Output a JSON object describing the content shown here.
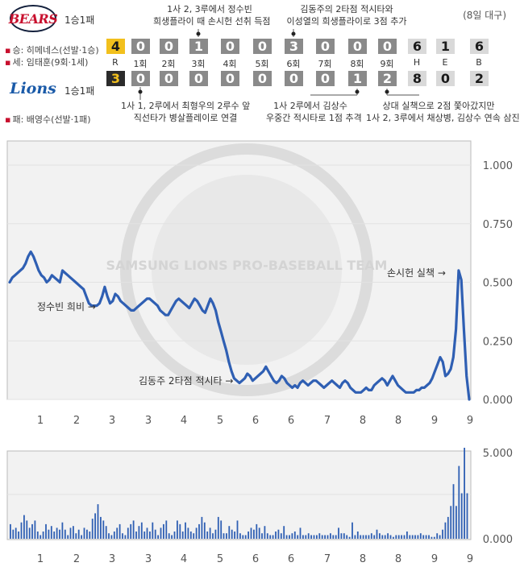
{
  "date_label": "(8일 대구)",
  "teams": {
    "away": {
      "logo_text": "BEARS",
      "record": "1승1패",
      "win_pitcher": "승: 히메네스(선발·1승)",
      "save_pitcher": "세: 임태훈(9회·1세)",
      "runs": "4",
      "innings": [
        "0",
        "0",
        "1",
        "0",
        "0",
        "3",
        "0",
        "0",
        "0"
      ],
      "hits": "6",
      "errors": "1",
      "walks": "6"
    },
    "home": {
      "logo_text": "Lions",
      "record": "1승1패",
      "loss_pitcher": "패: 배영수(선발·1패)",
      "runs": "3",
      "innings": [
        "0",
        "0",
        "0",
        "0",
        "0",
        "0",
        "0",
        "1",
        "2"
      ],
      "hits": "8",
      "errors": "0",
      "walks": "2"
    }
  },
  "scoreboard_labels": {
    "runs": "R",
    "innings": [
      "1회",
      "2회",
      "3회",
      "4회",
      "5회",
      "6회",
      "7회",
      "8회",
      "9회"
    ],
    "hits": "H",
    "errors": "E",
    "walks": "B"
  },
  "notes": {
    "third_top_1": "1사 2, 3루에서 정수빈",
    "third_top_2": "희생플라이 때 손시헌 선취 득점",
    "sixth_top_1": "김동주의 2타점 적시타와",
    "sixth_top_2": "이성열의 희생플라이로 3점 추가",
    "first_bottom_1": "1사 1, 2루에서 최형우의 2루수 앞",
    "first_bottom_2": "직선타가 병살플레이로 연결",
    "eighth_bottom_1": "1사 2루에서 김상수",
    "eighth_bottom_2": "우중간 적시타로 1점 추격",
    "ninth_bottom_1": "상대 실책으로 2점 쫓아갔지만",
    "ninth_bottom_2": "1사 2, 3루에서 채상병, 김상수 연속 삼진"
  },
  "watermark": {
    "text": "SAMSUNG LIONS PRO-BASEBALL TEAM"
  },
  "annotations": {
    "jung": "정수빈 희비 →",
    "kim": "김동주 2타점 적시타 →",
    "son": "손시헌 실책 →"
  },
  "colors": {
    "line": "#2f5fb3",
    "bar": "#2f5fb3",
    "plot_bg": "#f2f2f2",
    "panel_border": "#bbbbbb"
  },
  "chart_data": [
    {
      "type": "line",
      "title": "",
      "xlabel": "",
      "ylabel": "",
      "x_tick_labels": [
        "1",
        "2",
        "3",
        "3",
        "4",
        "5",
        "6",
        "6",
        "7",
        "8",
        "8",
        "9",
        "9"
      ],
      "y_ticks": [
        "1.000",
        "0.750",
        "0.500",
        "0.250",
        "0.000"
      ],
      "ylim": [
        0,
        1
      ],
      "grid": true,
      "series": [
        {
          "values": [
            0.5,
            0.52,
            0.53,
            0.54,
            0.55,
            0.56,
            0.58,
            0.61,
            0.63,
            0.61,
            0.58,
            0.55,
            0.53,
            0.52,
            0.5,
            0.51,
            0.53,
            0.52,
            0.51,
            0.5,
            0.55,
            0.54,
            0.53,
            0.52,
            0.51,
            0.5,
            0.49,
            0.48,
            0.47,
            0.44,
            0.41,
            0.4,
            0.4,
            0.4,
            0.41,
            0.44,
            0.48,
            0.44,
            0.41,
            0.42,
            0.45,
            0.44,
            0.42,
            0.41,
            0.4,
            0.39,
            0.38,
            0.38,
            0.39,
            0.4,
            0.41,
            0.42,
            0.43,
            0.43,
            0.42,
            0.41,
            0.4,
            0.38,
            0.37,
            0.36,
            0.36,
            0.38,
            0.4,
            0.42,
            0.43,
            0.42,
            0.41,
            0.4,
            0.39,
            0.41,
            0.43,
            0.42,
            0.4,
            0.38,
            0.37,
            0.4,
            0.43,
            0.41,
            0.38,
            0.33,
            0.29,
            0.25,
            0.21,
            0.16,
            0.12,
            0.09,
            0.08,
            0.07,
            0.08,
            0.09,
            0.11,
            0.1,
            0.08,
            0.09,
            0.1,
            0.11,
            0.12,
            0.14,
            0.12,
            0.1,
            0.08,
            0.07,
            0.08,
            0.1,
            0.09,
            0.07,
            0.06,
            0.05,
            0.06,
            0.05,
            0.07,
            0.08,
            0.07,
            0.06,
            0.07,
            0.08,
            0.08,
            0.07,
            0.06,
            0.05,
            0.06,
            0.07,
            0.08,
            0.07,
            0.06,
            0.05,
            0.07,
            0.08,
            0.07,
            0.05,
            0.04,
            0.03,
            0.03,
            0.03,
            0.04,
            0.05,
            0.04,
            0.04,
            0.06,
            0.07,
            0.08,
            0.09,
            0.08,
            0.06,
            0.08,
            0.1,
            0.08,
            0.06,
            0.05,
            0.04,
            0.03,
            0.03,
            0.03,
            0.03,
            0.04,
            0.04,
            0.05,
            0.05,
            0.06,
            0.07,
            0.09,
            0.12,
            0.15,
            0.18,
            0.16,
            0.1,
            0.11,
            0.13,
            0.18,
            0.3,
            0.55,
            0.51,
            0.3,
            0.1,
            0.0
          ]
        }
      ]
    },
    {
      "type": "bar",
      "title": "",
      "y_ticks": [
        "5.000",
        "0.000"
      ],
      "ylim": [
        0,
        5
      ],
      "x_tick_labels": [
        "1",
        "2",
        "3",
        "3",
        "4",
        "5",
        "6",
        "6",
        "7",
        "8",
        "8",
        "9",
        "9"
      ],
      "values": [
        0.8,
        0.5,
        0.6,
        0.4,
        0.9,
        1.3,
        1.0,
        0.6,
        0.8,
        1.0,
        0.4,
        0.2,
        0.4,
        0.8,
        0.5,
        0.7,
        0.4,
        0.6,
        0.5,
        0.9,
        0.5,
        0.2,
        0.6,
        0.7,
        0.3,
        0.5,
        0.2,
        0.6,
        0.5,
        0.4,
        1.1,
        1.4,
        1.9,
        1.2,
        1.0,
        0.7,
        0.3,
        0.2,
        0.4,
        0.6,
        0.8,
        0.3,
        0.2,
        0.6,
        0.8,
        1.0,
        0.4,
        0.7,
        0.9,
        0.4,
        0.6,
        0.4,
        0.9,
        0.5,
        0.2,
        0.6,
        0.8,
        1.0,
        0.3,
        0.2,
        0.4,
        1.0,
        0.8,
        0.4,
        0.9,
        0.6,
        0.4,
        0.3,
        0.6,
        0.8,
        1.2,
        0.9,
        0.4,
        0.6,
        0.3,
        0.5,
        1.2,
        1.0,
        0.3,
        0.3,
        0.7,
        0.5,
        0.4,
        1.0,
        0.3,
        0.2,
        0.2,
        0.4,
        0.6,
        0.5,
        0.8,
        0.6,
        0.3,
        0.7,
        0.3,
        0.2,
        0.2,
        0.4,
        0.5,
        0.3,
        0.7,
        0.2,
        0.2,
        0.3,
        0.4,
        0.2,
        0.6,
        0.2,
        0.2,
        0.3,
        0.2,
        0.2,
        0.2,
        0.3,
        0.2,
        0.2,
        0.2,
        0.3,
        0.2,
        0.2,
        0.6,
        0.3,
        0.3,
        0.2,
        0.1,
        0.9,
        0.2,
        0.4,
        0.2,
        0.2,
        0.2,
        0.2,
        0.3,
        0.2,
        0.5,
        0.3,
        0.2,
        0.2,
        0.3,
        0.2,
        0.1,
        0.2,
        0.2,
        0.2,
        0.2,
        0.4,
        0.2,
        0.2,
        0.2,
        0.2,
        0.3,
        0.2,
        0.2,
        0.2,
        0.1,
        0.1,
        0.3,
        0.2,
        0.5,
        0.9,
        1.2,
        1.8,
        3.0,
        1.8,
        4.0,
        2.5,
        5.0,
        2.5
      ]
    }
  ]
}
